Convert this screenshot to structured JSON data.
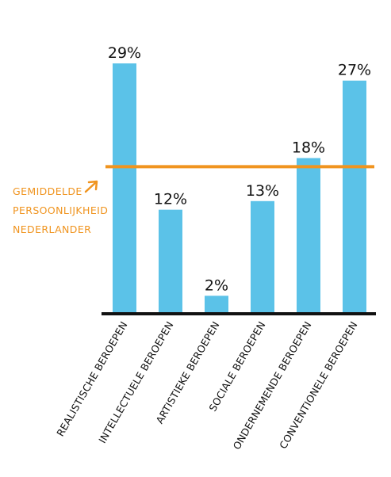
{
  "chart_data": {
    "type": "bar",
    "categories": [
      "REALISTISCHE BEROEPEN",
      "INTELLECTUELE BEROEPEN",
      "ARTISTIEKE BEROEPEN",
      "SOCIALE BEROEPEN",
      "ONDERNEMENDE BEROEPEN",
      "CONVENTIONELE BEROEPEN"
    ],
    "values": [
      29,
      12,
      2,
      13,
      18,
      27
    ],
    "value_labels": [
      "29%",
      "12%",
      "2%",
      "13%",
      "18%",
      "27%"
    ],
    "ylim": [
      0,
      32
    ],
    "reference_line": {
      "value": 17,
      "label_lines": [
        "GEMIDDELDE",
        "PERSOONLIJKHEID",
        "NEDERLANDER"
      ],
      "color": "#f0941f"
    },
    "bar_color": "#5bc2e8",
    "axis_color": "#111111",
    "grid": false,
    "legend": "none",
    "title": "",
    "xlabel": "",
    "ylabel": ""
  },
  "icons": {
    "annotation_arrow": "arrow-up-right-icon"
  }
}
